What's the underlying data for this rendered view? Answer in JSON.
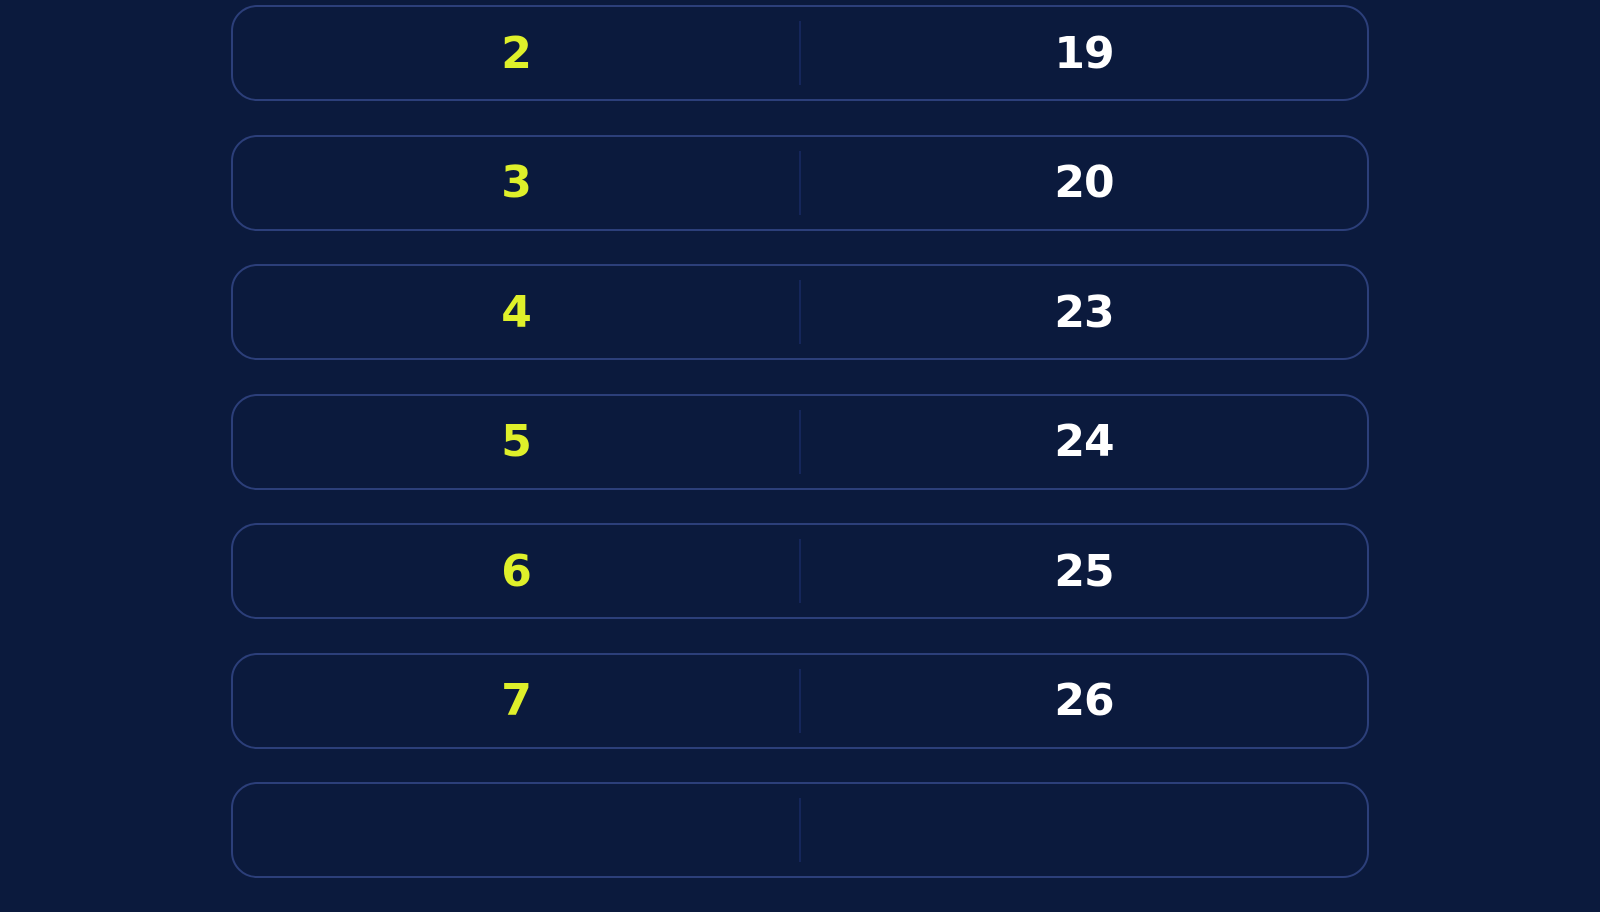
{
  "colors": {
    "background": "#0b1a3d",
    "row_border": "#2c3f7a",
    "left_value": "#dff02a",
    "right_value": "#ffffff"
  },
  "rows": [
    {
      "left": "2",
      "right": "19"
    },
    {
      "left": "3",
      "right": "20"
    },
    {
      "left": "4",
      "right": "23"
    },
    {
      "left": "5",
      "right": "24"
    },
    {
      "left": "6",
      "right": "25"
    },
    {
      "left": "7",
      "right": "26"
    },
    {
      "left": "",
      "right": ""
    }
  ]
}
